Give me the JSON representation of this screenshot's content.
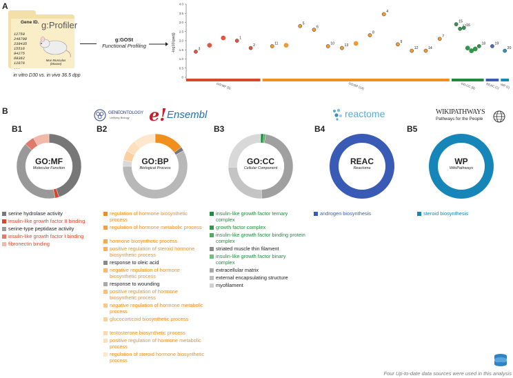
{
  "panel_a": {
    "letter": "A",
    "folder": {
      "title": "Gene ID.",
      "logo": "g:Profiler",
      "genes": [
        "12759",
        "246700",
        "239435",
        "15516",
        "94275",
        "69362",
        "12876",
        "..."
      ],
      "mouse_caption_line1": "Mus Musculus",
      "mouse_caption_line2": "(Mouse)"
    },
    "comparison_label": "in vitro D30 vs. in vivo 36.5 dpp",
    "tool_label": "g:GOSt",
    "tool_sublabel": "Functional Profiling"
  },
  "panel_b": {
    "letter": "B",
    "sub_letters": [
      "B1",
      "B2",
      "B3",
      "B4",
      "B5"
    ],
    "logos": {
      "geneontology": "GENEONTOLOGY",
      "geneontology_sub": "Unifying Biology",
      "ensembl": "Ensembl",
      "reactome": "reactome",
      "wikipathways": "WIKIPATHWAYS",
      "wikipathways_sub": "Pathways for the People"
    },
    "donuts": [
      {
        "title": "GO:MF",
        "subtitle": "Molecular Function"
      },
      {
        "title": "GO:BP",
        "subtitle": "Biological Process"
      },
      {
        "title": "GO:CC",
        "subtitle": "Cellular Component"
      },
      {
        "title": "REAC",
        "subtitle": "Reactome"
      },
      {
        "title": "WP",
        "subtitle": "WikiPathways"
      }
    ],
    "legends": {
      "mf": [
        {
          "text": "serine hydrolase activity",
          "color": "#777777",
          "text_color": "#222222"
        },
        {
          "text": "insulin-like growth factor II binding",
          "color": "#d9472b",
          "text_color": "#d9472b"
        },
        {
          "text": "serine-type peptidase activity",
          "color": "#999999",
          "text_color": "#222222"
        },
        {
          "text": "insulin-like growth factor I binding",
          "color": "#e07a6a",
          "text_color": "#d9472b"
        },
        {
          "text": "fibronectin binding",
          "color": "#f2b8aa",
          "text_color": "#d9472b"
        }
      ],
      "bp": [
        {
          "text": "regulation of hormone biosynthetic process",
          "color": "#f28e1c",
          "text_color": "#f28e1c"
        },
        {
          "text": "regulation of hormone metabolic process",
          "color": "#f4a040",
          "text_color": "#f28e1c"
        },
        {
          "text": "hormone biosynthetic process",
          "color": "#f5a94f",
          "text_color": "#f28e1c"
        },
        {
          "text": "positive regulation of steroid hormone biosynthetic process",
          "color": "#f6b060",
          "text_color": "#f28e1c"
        },
        {
          "text": "response to oleic acid",
          "color": "#888888",
          "text_color": "#222222"
        },
        {
          "text": "negative regulation of hormone biosynthetic process",
          "color": "#f7b86e",
          "text_color": "#f28e1c"
        },
        {
          "text": "response to wounding",
          "color": "#aaaaaa",
          "text_color": "#222222"
        },
        {
          "text": "positive regulation of hormone biosynthetic process",
          "color": "#f8c07e",
          "text_color": "#f28e1c"
        },
        {
          "text": "negative regulation of hormone metabolic process",
          "color": "#f9c88e",
          "text_color": "#f28e1c"
        },
        {
          "text": "glucocorticoid biosynthetic process",
          "color": "#fad09e",
          "text_color": "#f28e1c"
        },
        {
          "text": "testosterone biosynthetic process",
          "color": "#fbd8ae",
          "text_color": "#f28e1c"
        },
        {
          "text": "positive regulation of hormone metabolic process",
          "color": "#fce0be",
          "text_color": "#f28e1c"
        },
        {
          "text": "regulation of steroid hormone biosynthetic process",
          "color": "#fde8ce",
          "text_color": "#f28e1c"
        }
      ],
      "cc": [
        {
          "text": "insulin-like growth factor ternary complex",
          "color": "#1f8a3c",
          "text_color": "#1f8a3c"
        },
        {
          "text": "growth factor complex",
          "color": "#2f9a4c",
          "text_color": "#1f8a3c"
        },
        {
          "text": "insulin-like growth factor binding protein complex",
          "color": "#4aae5e",
          "text_color": "#1f8a3c"
        },
        {
          "text": "striated muscle thin filament",
          "color": "#8c8c8c",
          "text_color": "#222222"
        },
        {
          "text": "insulin-like growth factor binary complex",
          "color": "#6cc27a",
          "text_color": "#1f8a3c"
        },
        {
          "text": "extracellular matrix",
          "color": "#a8a8a8",
          "text_color": "#222222"
        },
        {
          "text": "external encapsulating structure",
          "color": "#bcbcbc",
          "text_color": "#222222"
        },
        {
          "text": "myofilament",
          "color": "#d0d0d0",
          "text_color": "#222222"
        }
      ],
      "reac": [
        {
          "text": "androgen biosynthesis",
          "color": "#3a5bb5",
          "text_color": "#3a5bb5"
        }
      ],
      "wp": [
        {
          "text": "steroid biosynthesis",
          "color": "#1586b7",
          "text_color": "#1586b7"
        }
      ]
    },
    "footer_note": "Four Up-to-date data sources were used in this analysis"
  },
  "chart_data": {
    "type": "scatter",
    "ylabel": "-log10(padj)",
    "ylim": [
      0,
      4
    ],
    "yticks": [
      "0",
      "0.5",
      "1.0",
      "1.5",
      "2.0",
      "2.5",
      "3.0",
      "3.5",
      "4.0"
    ],
    "sources": [
      {
        "name": "GO:MF (5)",
        "color": "#d9472b"
      },
      {
        "name": "GO:BP (13)",
        "color": "#f28e1c"
      },
      {
        "name": "GO:CC (8)",
        "color": "#1f8a3c"
      },
      {
        "name": "REAC (1)",
        "color": "#3a5bb5"
      },
      {
        "name": "WP (1)",
        "color": "#1586b7"
      }
    ],
    "points": [
      {
        "label": "3",
        "source": "GO:MF",
        "y": 1.4
      },
      {
        "label": "",
        "source": "GO:MF",
        "y": 1.75
      },
      {
        "label": "",
        "source": "GO:MF",
        "y": 2.15
      },
      {
        "label": "1",
        "source": "GO:MF",
        "y": 2.0
      },
      {
        "label": "2",
        "source": "GO:MF",
        "y": 1.6
      },
      {
        "label": "11",
        "source": "GO:BP",
        "y": 1.7
      },
      {
        "label": "",
        "source": "GO:BP",
        "y": 1.75
      },
      {
        "label": "5",
        "source": "GO:BP",
        "y": 2.8
      },
      {
        "label": "6",
        "source": "GO:BP",
        "y": 2.6
      },
      {
        "label": "10",
        "source": "GO:BP",
        "y": 1.7
      },
      {
        "label": "13",
        "source": "GO:BP",
        "y": 1.6
      },
      {
        "label": "",
        "source": "GO:BP",
        "y": 1.85
      },
      {
        "label": "8",
        "source": "GO:BP",
        "y": 2.3
      },
      {
        "label": "4",
        "source": "GO:BP",
        "y": 3.45
      },
      {
        "label": "9",
        "source": "GO:BP",
        "y": 1.8
      },
      {
        "label": "12",
        "source": "GO:BP",
        "y": 1.45
      },
      {
        "label": "14",
        "source": "GO:BP",
        "y": 1.45
      },
      {
        "label": "7",
        "source": "GO:BP",
        "y": 2.1
      },
      {
        "label": "15",
        "source": "GO:CC",
        "y": 2.9
      },
      {
        "label": "17",
        "source": "GO:CC",
        "y": 2.65
      },
      {
        "label": "16",
        "source": "GO:CC",
        "y": 2.7
      },
      {
        "label": "",
        "source": "GO:CC",
        "y": 1.6
      },
      {
        "label": "",
        "source": "GO:CC",
        "y": 1.45
      },
      {
        "label": "",
        "source": "GO:CC",
        "y": 1.55
      },
      {
        "label": "18",
        "source": "GO:CC",
        "y": 1.7
      },
      {
        "label": "19",
        "source": "REAC",
        "y": 1.7
      },
      {
        "label": "20",
        "source": "WP",
        "y": 1.45
      }
    ]
  }
}
